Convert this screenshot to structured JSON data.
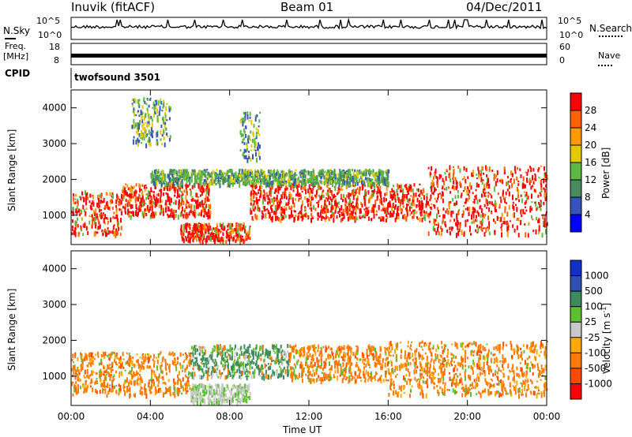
{
  "header": {
    "station": "Inuvik (fitACF)",
    "beam": "Beam 01",
    "date": "04/Dec/2011"
  },
  "left_labels": {
    "nsky": "N.Sky",
    "freq": "Freq.",
    "mhz": "[MHz]",
    "cpid": "CPID"
  },
  "right_labels": {
    "nsearch": "N.Search",
    "nave": "Nave"
  },
  "strip_axes": {
    "noise_left_top": "10^5",
    "noise_left_bottom": "10^0",
    "noise_right_top": "10^5",
    "noise_right_bottom": "10^0",
    "freq_left_top": "18",
    "freq_left_bottom": "8",
    "nave_right_top": "60",
    "nave_right_bottom": "0"
  },
  "cpid_text": "twofsound 3501",
  "chart_data": [
    {
      "type": "heatmap",
      "panel": "power",
      "ylabel": "Slant Range [km]",
      "y_ticks": [
        "1000",
        "2000",
        "3000",
        "4000"
      ],
      "ylim": [
        180,
        4500
      ],
      "x_ticks": [
        "00:00",
        "04:00",
        "08:00",
        "12:00",
        "16:00",
        "20:00",
        "00:00"
      ],
      "xlim_hours": [
        0,
        24
      ],
      "colorbar": {
        "label": "Power [dB]",
        "ticks": [
          "4",
          "8",
          "12",
          "16",
          "20",
          "24",
          "28"
        ],
        "colors": [
          "#0000ff",
          "#3553b8",
          "#4a8a60",
          "#5cb840",
          "#e4c800",
          "#ff9a00",
          "#ff6000",
          "#ff0000"
        ]
      },
      "echo_regions": [
        {
          "t_start": 0.0,
          "t_end": 2.5,
          "r_min": 500,
          "r_max": 1700,
          "level": "high"
        },
        {
          "t_start": 2.5,
          "t_end": 7.0,
          "r_min": 1000,
          "r_max": 1900,
          "level": "high"
        },
        {
          "t_start": 5.5,
          "t_end": 9.0,
          "r_min": 300,
          "r_max": 800,
          "level": "high"
        },
        {
          "t_start": 9.0,
          "t_end": 13.0,
          "r_min": 900,
          "r_max": 1900,
          "level": "high"
        },
        {
          "t_start": 13.0,
          "t_end": 18.0,
          "r_min": 900,
          "r_max": 1900,
          "level": "high"
        },
        {
          "t_start": 18.0,
          "t_end": 24.0,
          "r_min": 500,
          "r_max": 2400,
          "level": "high"
        },
        {
          "t_start": 4.0,
          "t_end": 16.0,
          "r_min": 1900,
          "r_max": 2300,
          "level": "medium"
        },
        {
          "t_start": 3.0,
          "t_end": 5.0,
          "r_min": 3000,
          "r_max": 4300,
          "level": "low"
        },
        {
          "t_start": 8.5,
          "t_end": 9.5,
          "r_min": 2600,
          "r_max": 3900,
          "level": "low"
        }
      ]
    },
    {
      "type": "heatmap",
      "panel": "velocity",
      "ylabel": "Slant Range [km]",
      "xlabel": "Time UT",
      "y_ticks": [
        "1000",
        "2000",
        "3000",
        "4000"
      ],
      "ylim": [
        180,
        4500
      ],
      "x_ticks": [
        "00:00",
        "04:00",
        "08:00",
        "12:00",
        "16:00",
        "20:00",
        "00:00"
      ],
      "xlim_hours": [
        0,
        24
      ],
      "colorbar": {
        "label": "Velocity",
        "label_units": "[m s",
        "label_exp": "-1",
        "label_close": "]",
        "ticks": [
          "-1000",
          "-500",
          "-100",
          "-25",
          "25",
          "100",
          "500",
          "1000"
        ],
        "colors": [
          "#ff0000",
          "#ff4a00",
          "#ff7a00",
          "#ffaa00",
          "#c8c8c8",
          "#5cc030",
          "#3c8a60",
          "#3050b0",
          "#1030c8"
        ]
      },
      "echo_regions": [
        {
          "t_start": 0.0,
          "t_end": 6.0,
          "r_min": 500,
          "r_max": 1700,
          "level": "negative"
        },
        {
          "t_start": 6.0,
          "t_end": 11.0,
          "r_min": 1000,
          "r_max": 1900,
          "level": "positive"
        },
        {
          "t_start": 11.0,
          "t_end": 16.0,
          "r_min": 900,
          "r_max": 1900,
          "level": "negative"
        },
        {
          "t_start": 16.0,
          "t_end": 24.0,
          "r_min": 500,
          "r_max": 2000,
          "level": "negative"
        },
        {
          "t_start": 6.0,
          "t_end": 9.0,
          "r_min": 300,
          "r_max": 800,
          "level": "zero"
        }
      ]
    }
  ]
}
